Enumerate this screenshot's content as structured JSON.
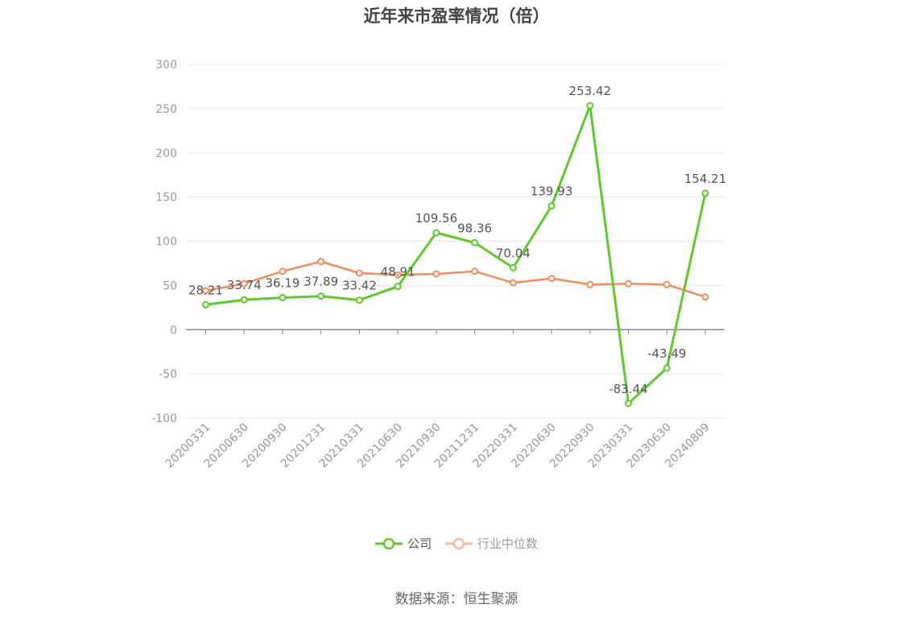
{
  "title": "近年来市盈率情况（倍）",
  "source": "数据来源：恒生聚源",
  "colors": {
    "company": "#5ec92b",
    "industry": "#f28c5a",
    "industry_legend": "#f7b9a0",
    "grid": "#e6e9f0",
    "axis": "#888888"
  },
  "chart_data": {
    "type": "line",
    "title": "近年来市盈率情况（倍）",
    "xlabel": "",
    "ylabel": "",
    "ylim": [
      -100,
      300
    ],
    "yticks": [
      -100,
      -50,
      0,
      50,
      100,
      150,
      200,
      250,
      300
    ],
    "grid": true,
    "legend_position": "bottom",
    "categories": [
      "20200331",
      "20200630",
      "20200930",
      "20201231",
      "20210331",
      "20210630",
      "20210930",
      "20211231",
      "20220331",
      "20220630",
      "20220930",
      "20230331",
      "20230630",
      "20240809"
    ],
    "series": [
      {
        "name": "公司",
        "color": "#5ec92b",
        "values": [
          28.21,
          33.74,
          36.19,
          37.89,
          33.42,
          48.91,
          109.56,
          98.36,
          70.04,
          139.93,
          253.42,
          -83.44,
          -43.49,
          154.21
        ],
        "labels": [
          "28.21",
          "33.74",
          "36.19",
          "37.89",
          "33.42",
          "48.91",
          "109.56",
          "98.36",
          "70.04",
          "139.93",
          "253.42",
          "-83.44",
          "-43.49",
          "154.21"
        ]
      },
      {
        "name": "行业中位数",
        "color": "#f28c5a",
        "values": [
          44,
          52,
          66,
          77,
          64,
          62,
          63,
          66,
          53,
          58,
          51,
          52,
          51,
          37
        ]
      }
    ]
  }
}
